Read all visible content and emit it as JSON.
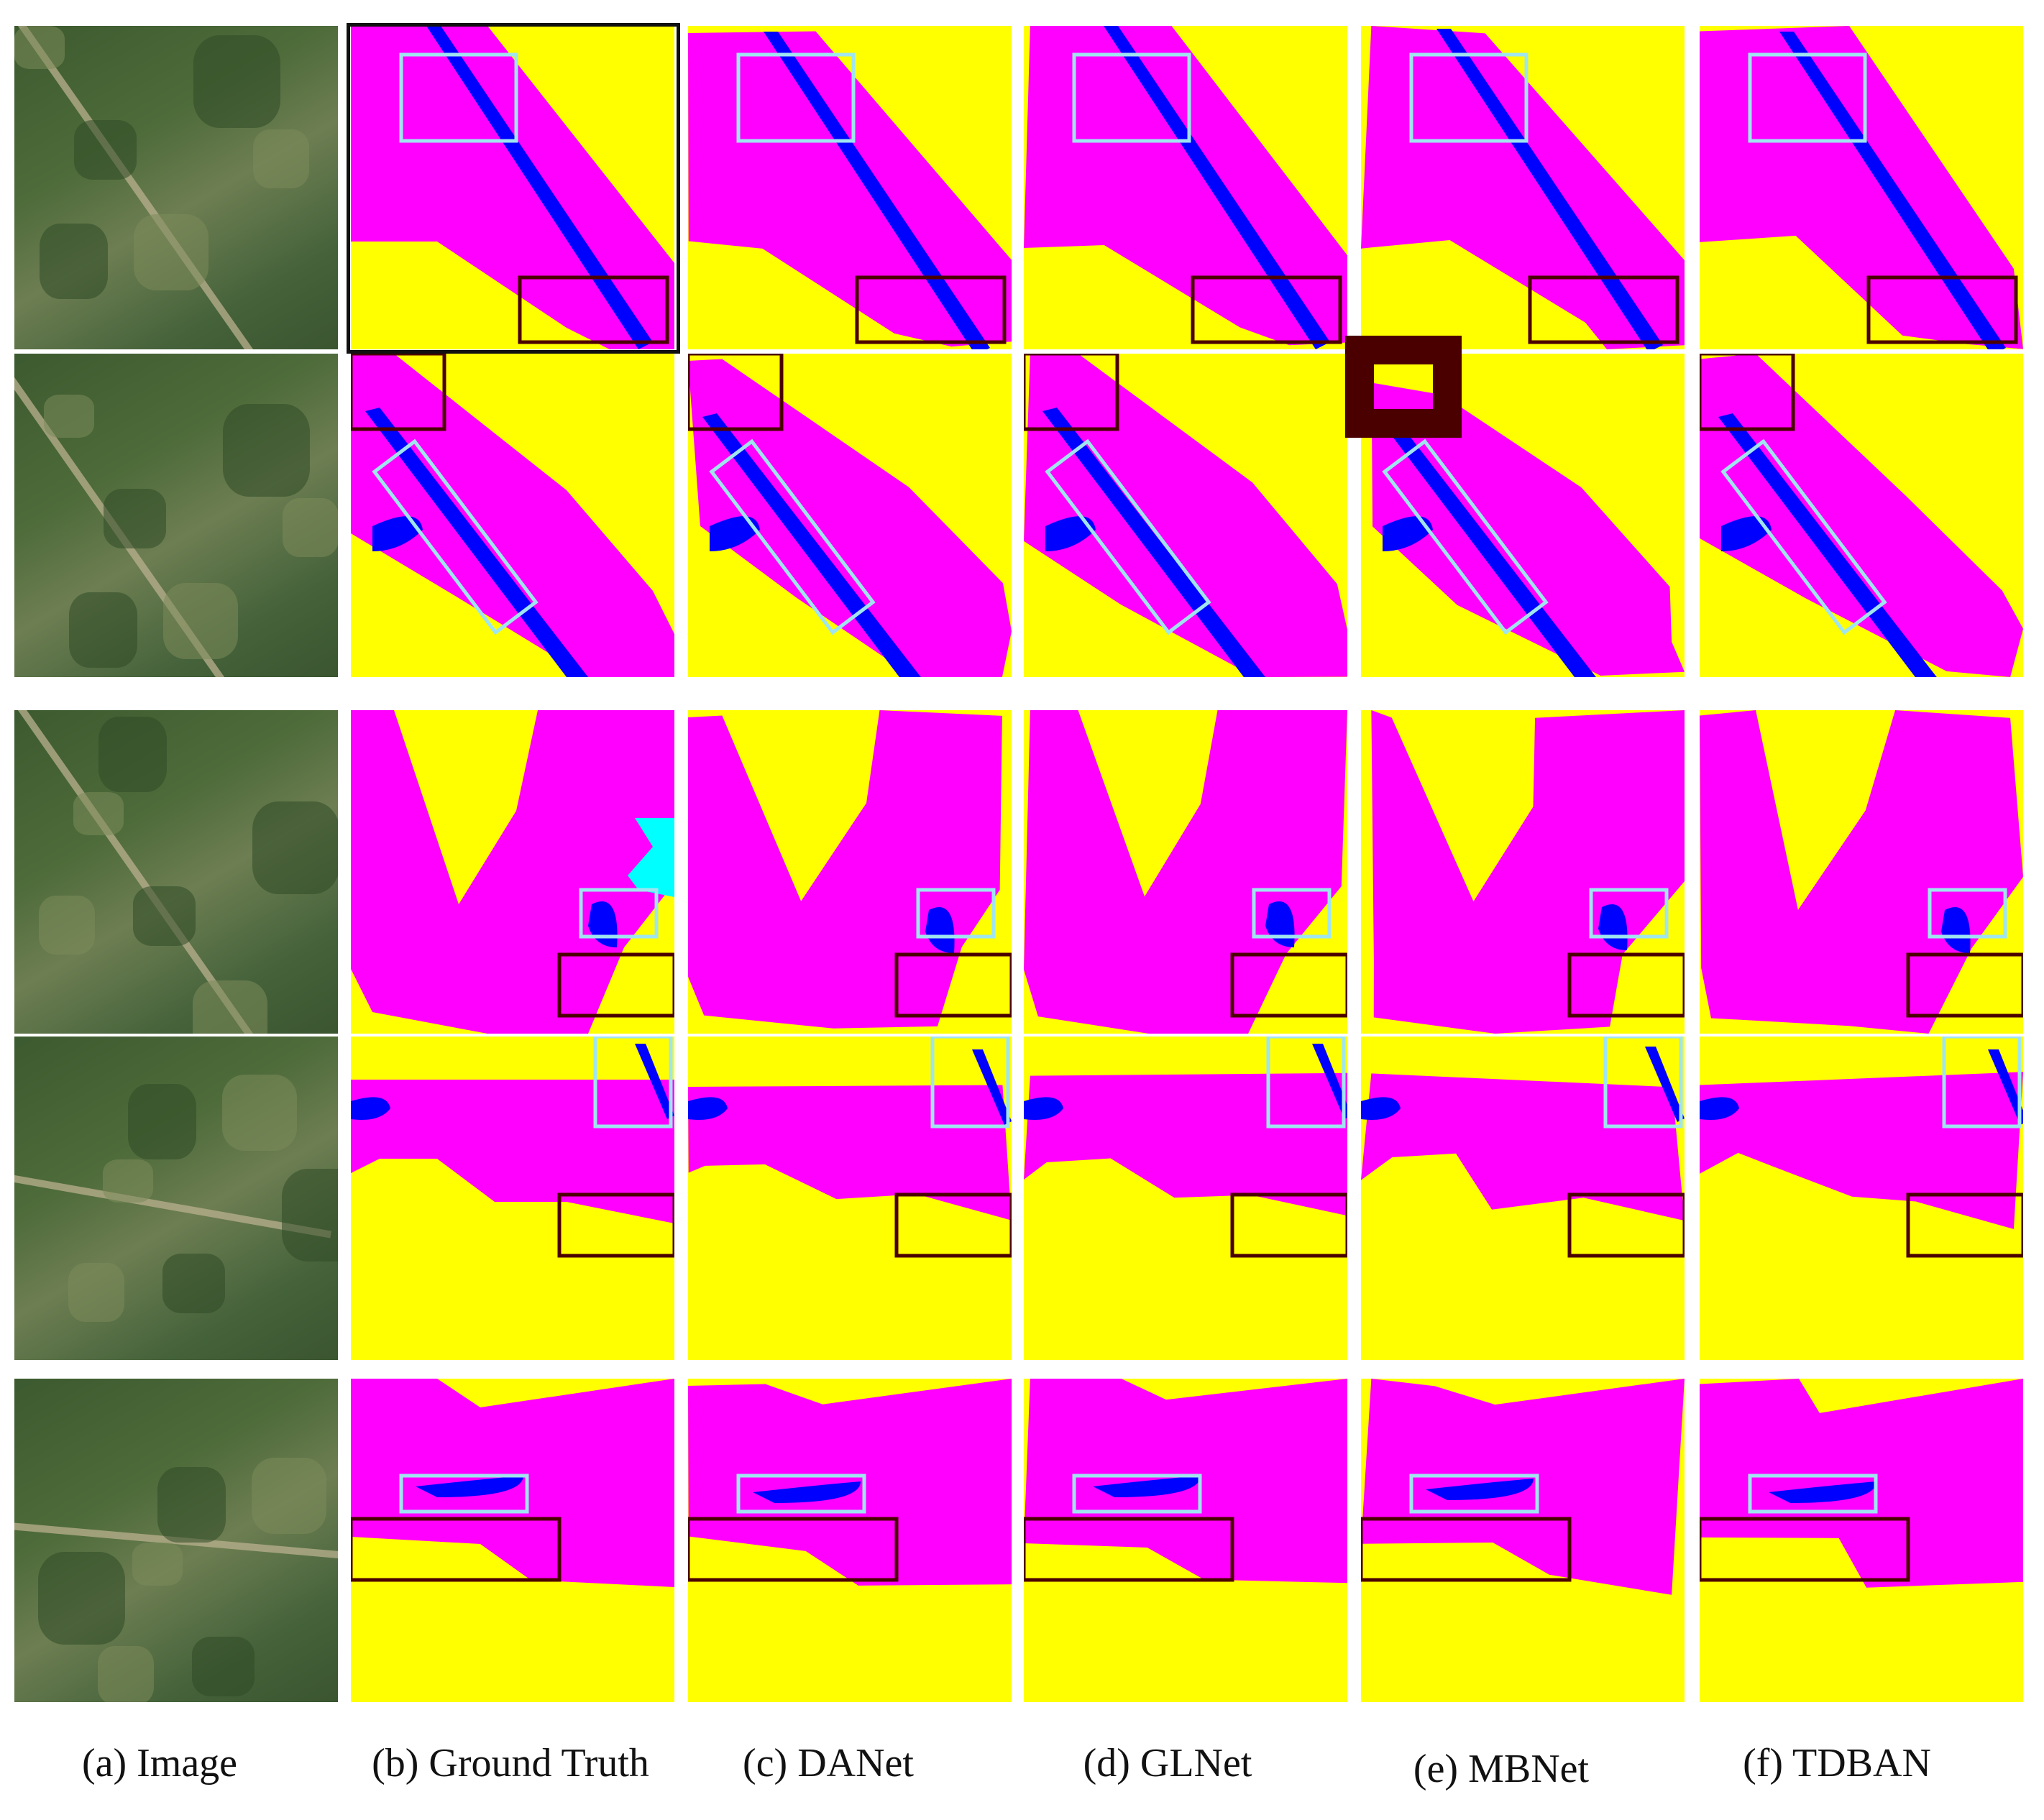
{
  "captions": {
    "image": "(a) Image",
    "ground_truth": "(b) Ground Truth",
    "danet": "(c) DANet",
    "glnet": "(d) GLNet",
    "mbnet": "(e) MBNet",
    "tdban": "(f) TDBAN"
  },
  "colors": {
    "background_class": "#ffff00",
    "foreground_class": "#ff00ff",
    "water_class": "#0000ff",
    "extra_class": "#00ffff",
    "highlight_box_light": "#9fe5f0",
    "highlight_box_dark": "#4b0000"
  }
}
